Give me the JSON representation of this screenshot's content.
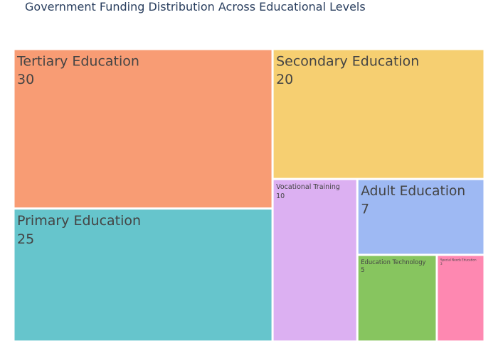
{
  "chart_data": {
    "type": "treemap",
    "title": "Government Funding Distribution Across Educational Levels",
    "items": [
      {
        "label": "Tertiary Education",
        "value": 30,
        "color": "#f89c74"
      },
      {
        "label": "Primary Education",
        "value": 25,
        "color": "#66c5cc"
      },
      {
        "label": "Secondary Education",
        "value": 20,
        "color": "#f6cf71"
      },
      {
        "label": "Vocational Training",
        "value": 10,
        "color": "#dcb0f2"
      },
      {
        "label": "Adult Education",
        "value": 7,
        "color": "#9eb9f3"
      },
      {
        "label": "Education Technology",
        "value": 5,
        "color": "#87c55f"
      },
      {
        "label": "Special Needs Education",
        "value": 3,
        "color": "#fe88b1"
      }
    ]
  }
}
